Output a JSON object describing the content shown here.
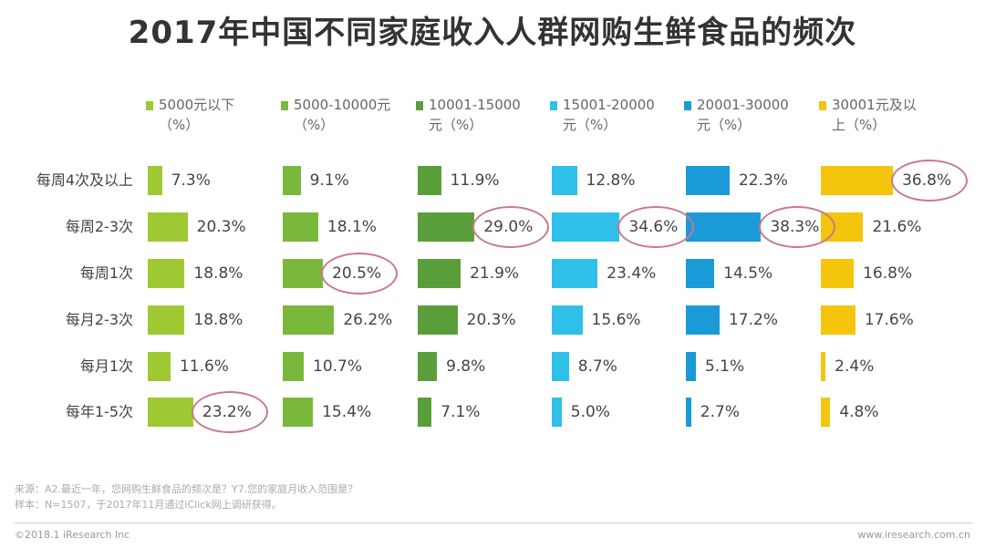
{
  "chart_data": {
    "type": "bar",
    "title": "2017年中国不同家庭收入人群网购生鲜食品的频次",
    "categories": [
      "每周4次及以上",
      "每周2-3次",
      "每周1次",
      "每月2-3次",
      "每月1次",
      "每年1-5次"
    ],
    "series": [
      {
        "name_line1": "5000元以下",
        "name_line2": "（%）",
        "color": "#9ec933",
        "values": [
          7.3,
          20.3,
          18.8,
          18.8,
          11.6,
          23.2
        ],
        "labels": [
          "7.3%",
          "20.3%",
          "18.8%",
          "18.8%",
          "11.6%",
          "23.2%"
        ]
      },
      {
        "name_line1": "5000-10000元",
        "name_line2": "（%）",
        "color": "#7ab83c",
        "values": [
          9.1,
          18.1,
          20.5,
          26.2,
          10.7,
          15.4
        ],
        "labels": [
          "9.1%",
          "18.1%",
          "20.5%",
          "26.2%",
          "10.7%",
          "15.4%"
        ]
      },
      {
        "name_line1": "10001-15000",
        "name_line2": "元（%）",
        "color": "#5a9e3c",
        "values": [
          11.9,
          29.0,
          21.9,
          20.3,
          9.8,
          7.1
        ],
        "labels": [
          "11.9%",
          "29.0%",
          "21.9%",
          "20.3%",
          "9.8%",
          "7.1%"
        ]
      },
      {
        "name_line1": "15001-20000",
        "name_line2": "元（%）",
        "color": "#2ec0e8",
        "values": [
          12.8,
          34.6,
          23.4,
          15.6,
          8.7,
          5.0
        ],
        "labels": [
          "12.8%",
          "34.6%",
          "23.4%",
          "15.6%",
          "8.7%",
          "5.0%"
        ]
      },
      {
        "name_line1": "20001-30000",
        "name_line2": "元（%）",
        "color": "#1a9bd7",
        "values": [
          22.3,
          38.3,
          14.5,
          17.2,
          5.1,
          2.7
        ],
        "labels": [
          "22.3%",
          "38.3%",
          "14.5%",
          "17.2%",
          "5.1%",
          "2.7%"
        ]
      },
      {
        "name_line1": "30001元及以",
        "name_line2": "上（%）",
        "color": "#f5c40c",
        "values": [
          36.8,
          21.6,
          16.8,
          17.6,
          2.4,
          4.8
        ],
        "labels": [
          "36.8%",
          "21.6%",
          "16.8%",
          "17.6%",
          "2.4%",
          "4.8%"
        ]
      }
    ],
    "highlights": [
      {
        "series": 0,
        "category": 5
      },
      {
        "series": 1,
        "category": 2
      },
      {
        "series": 2,
        "category": 1
      },
      {
        "series": 3,
        "category": 1
      },
      {
        "series": 4,
        "category": 1
      },
      {
        "series": 5,
        "category": 0
      }
    ]
  },
  "footnote": {
    "line1": "来源：A2.最近一年，您网购生鲜食品的频次是？Y7.您的家庭月收入范围是？",
    "line2": "样本：N=1507，于2017年11月通过iClick网上调研获得。"
  },
  "footer": {
    "copyright": "©2018.1 iResearch Inc",
    "website": "www.iresearch.com.cn"
  }
}
